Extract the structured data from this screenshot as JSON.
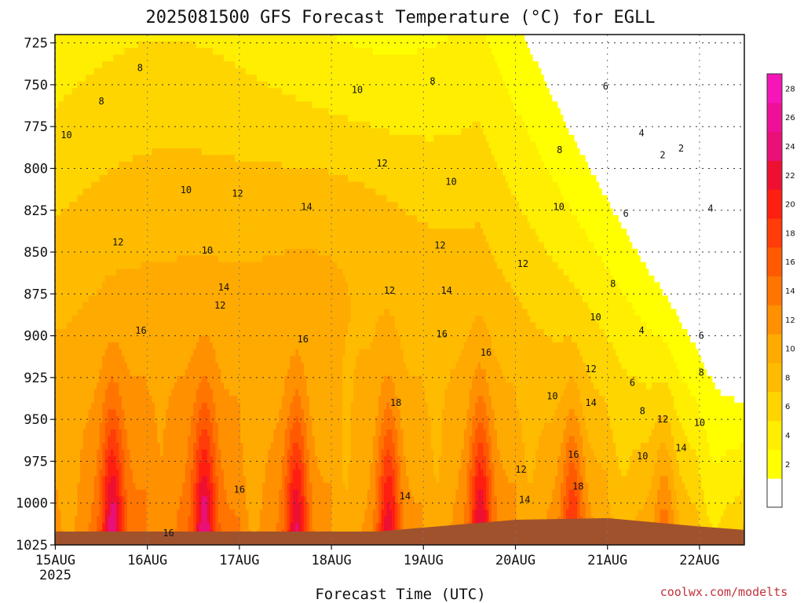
{
  "chart_data": {
    "type": "heatmap",
    "title": "2025081500 GFS Forecast Temperature (°C) for EGLL",
    "xlabel": "Forecast Time (UTC)",
    "ylabel": "",
    "credit": "coolwx.com/modelts",
    "x_ticks": [
      "15AUG",
      "16AUG",
      "17AUG",
      "18AUG",
      "19AUG",
      "20AUG",
      "21AUG",
      "22AUG"
    ],
    "x_year": "2025",
    "x_range_days": [
      0,
      7.5
    ],
    "y_ticks": [
      725,
      750,
      775,
      800,
      825,
      850,
      875,
      900,
      925,
      950,
      975,
      1000,
      1025
    ],
    "y_range": [
      1025,
      720
    ],
    "colorbar": {
      "ticks": [
        2,
        4,
        6,
        8,
        10,
        12,
        14,
        16,
        18,
        20,
        22,
        24,
        26,
        28
      ],
      "levels": [
        0,
        2,
        4,
        6,
        8,
        10,
        12,
        14,
        16,
        18,
        20,
        22,
        24,
        26,
        28,
        30
      ],
      "colors": [
        "#ffffff",
        "#ffff00",
        "#ffee00",
        "#ffd500",
        "#ffbb00",
        "#ffaa00",
        "#ff9000",
        "#ff7500",
        "#ff5a00",
        "#ff3c0a",
        "#ff1f10",
        "#ee1030",
        "#ea1078",
        "#ee1098",
        "#f515b8"
      ]
    },
    "surface_color": "#a0522d",
    "contour_labels": [
      {
        "text": "8",
        "x": 0.92,
        "p": 740
      },
      {
        "text": "8",
        "x": 0.5,
        "p": 760
      },
      {
        "text": "10",
        "x": 0.12,
        "p": 780
      },
      {
        "text": "10",
        "x": 1.42,
        "p": 813
      },
      {
        "text": "12",
        "x": 0.68,
        "p": 844
      },
      {
        "text": "10",
        "x": 1.65,
        "p": 849
      },
      {
        "text": "12",
        "x": 1.98,
        "p": 815
      },
      {
        "text": "14",
        "x": 1.83,
        "p": 871
      },
      {
        "text": "12",
        "x": 1.79,
        "p": 882
      },
      {
        "text": "16",
        "x": 0.93,
        "p": 897
      },
      {
        "text": "16",
        "x": 1.23,
        "p": 1018
      },
      {
        "text": "16",
        "x": 2.0,
        "p": 992
      },
      {
        "text": "14",
        "x": 2.73,
        "p": 823
      },
      {
        "text": "16",
        "x": 2.69,
        "p": 902
      },
      {
        "text": "10",
        "x": 3.28,
        "p": 753
      },
      {
        "text": "12",
        "x": 3.55,
        "p": 797
      },
      {
        "text": "14",
        "x": 3.8,
        "p": 996
      },
      {
        "text": "12",
        "x": 3.63,
        "p": 873
      },
      {
        "text": "18",
        "x": 3.7,
        "p": 940
      },
      {
        "text": "8",
        "x": 4.1,
        "p": 748
      },
      {
        "text": "12",
        "x": 4.18,
        "p": 846
      },
      {
        "text": "10",
        "x": 4.3,
        "p": 808
      },
      {
        "text": "14",
        "x": 4.25,
        "p": 873
      },
      {
        "text": "16",
        "x": 4.2,
        "p": 899
      },
      {
        "text": "16",
        "x": 4.68,
        "p": 910
      },
      {
        "text": "8",
        "x": 5.48,
        "p": 789
      },
      {
        "text": "10",
        "x": 5.47,
        "p": 823
      },
      {
        "text": "12",
        "x": 5.08,
        "p": 857
      },
      {
        "text": "12",
        "x": 5.06,
        "p": 980
      },
      {
        "text": "14",
        "x": 5.1,
        "p": 998
      },
      {
        "text": "10",
        "x": 5.4,
        "p": 936
      },
      {
        "text": "12",
        "x": 5.82,
        "p": 920
      },
      {
        "text": "14",
        "x": 5.82,
        "p": 940
      },
      {
        "text": "16",
        "x": 5.63,
        "p": 971
      },
      {
        "text": "18",
        "x": 5.68,
        "p": 990
      },
      {
        "text": "10",
        "x": 5.87,
        "p": 889
      },
      {
        "text": "6",
        "x": 5.98,
        "p": 751
      },
      {
        "text": "8",
        "x": 6.06,
        "p": 869
      },
      {
        "text": "6",
        "x": 6.2,
        "p": 827
      },
      {
        "text": "4",
        "x": 6.37,
        "p": 779
      },
      {
        "text": "2",
        "x": 6.6,
        "p": 792
      },
      {
        "text": "2",
        "x": 6.8,
        "p": 788
      },
      {
        "text": "4",
        "x": 6.37,
        "p": 897
      },
      {
        "text": "6",
        "x": 6.27,
        "p": 928
      },
      {
        "text": "8",
        "x": 6.38,
        "p": 945
      },
      {
        "text": "10",
        "x": 6.38,
        "p": 972
      },
      {
        "text": "12",
        "x": 6.6,
        "p": 950
      },
      {
        "text": "14",
        "x": 6.8,
        "p": 967
      },
      {
        "text": "4",
        "x": 7.12,
        "p": 824
      },
      {
        "text": "6",
        "x": 7.02,
        "p": 900
      },
      {
        "text": "8",
        "x": 7.02,
        "p": 922
      },
      {
        "text": "10",
        "x": 7.0,
        "p": 952
      }
    ]
  }
}
